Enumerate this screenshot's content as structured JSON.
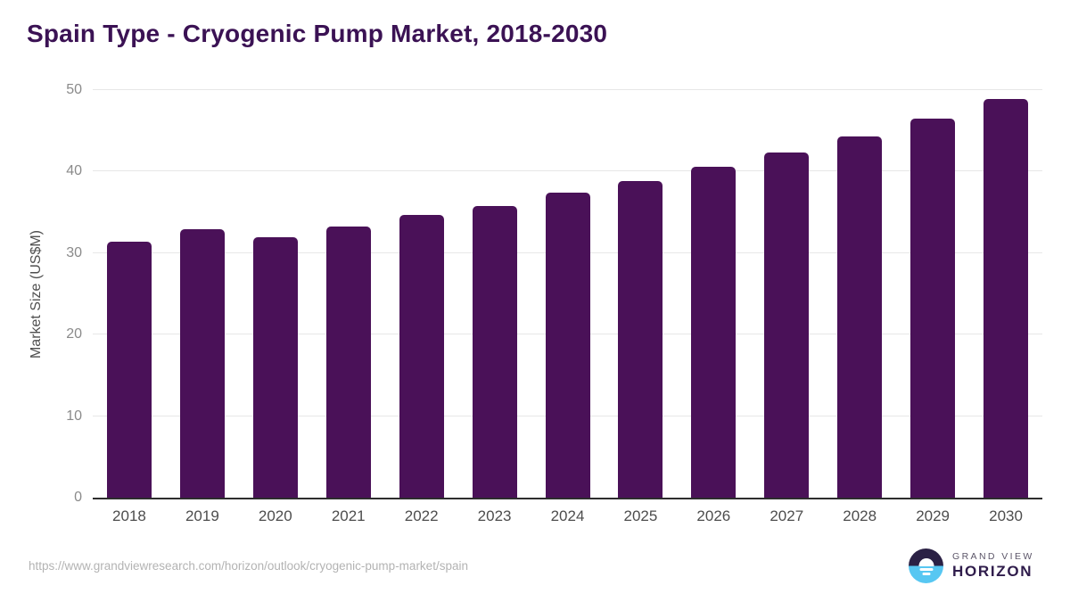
{
  "header": {
    "title": "Spain Type - Cryogenic Pump Market, 2018-2030"
  },
  "chart_data": {
    "type": "bar",
    "title": "Spain Type - Cryogenic Pump Market, 2018-2030",
    "categories": [
      "2018",
      "2019",
      "2020",
      "2021",
      "2022",
      "2023",
      "2024",
      "2025",
      "2026",
      "2027",
      "2028",
      "2029",
      "2030"
    ],
    "values": [
      31.4,
      32.9,
      32.0,
      33.3,
      34.7,
      35.8,
      37.4,
      38.8,
      40.6,
      42.3,
      44.3,
      46.5,
      48.9
    ],
    "series_name": "Market Size",
    "xlabel": "",
    "ylabel": "Market Size (US$M)",
    "ylim": [
      0,
      50
    ],
    "yticks": [
      0,
      10,
      20,
      30,
      40,
      50
    ],
    "grid": true,
    "legend": false,
    "bar_color": "#4a1158"
  },
  "footer": {
    "source_url": "https://www.grandviewresearch.com/horizon/outlook/cryogenic-pump-market/spain",
    "logo": {
      "top_line": "GRAND VIEW",
      "bottom_line": "HORIZON"
    }
  },
  "colors": {
    "title": "#3b1254",
    "bar": "#4a1158",
    "axis_line": "#2d2d2d",
    "gridline": "#e7e7e7",
    "y_tick_label": "#8a8a8a",
    "x_tick_label": "#4d4d4d",
    "url_text": "#b3b3b3",
    "logo_dark": "#2b2145",
    "logo_blue": "#57c7f2"
  }
}
